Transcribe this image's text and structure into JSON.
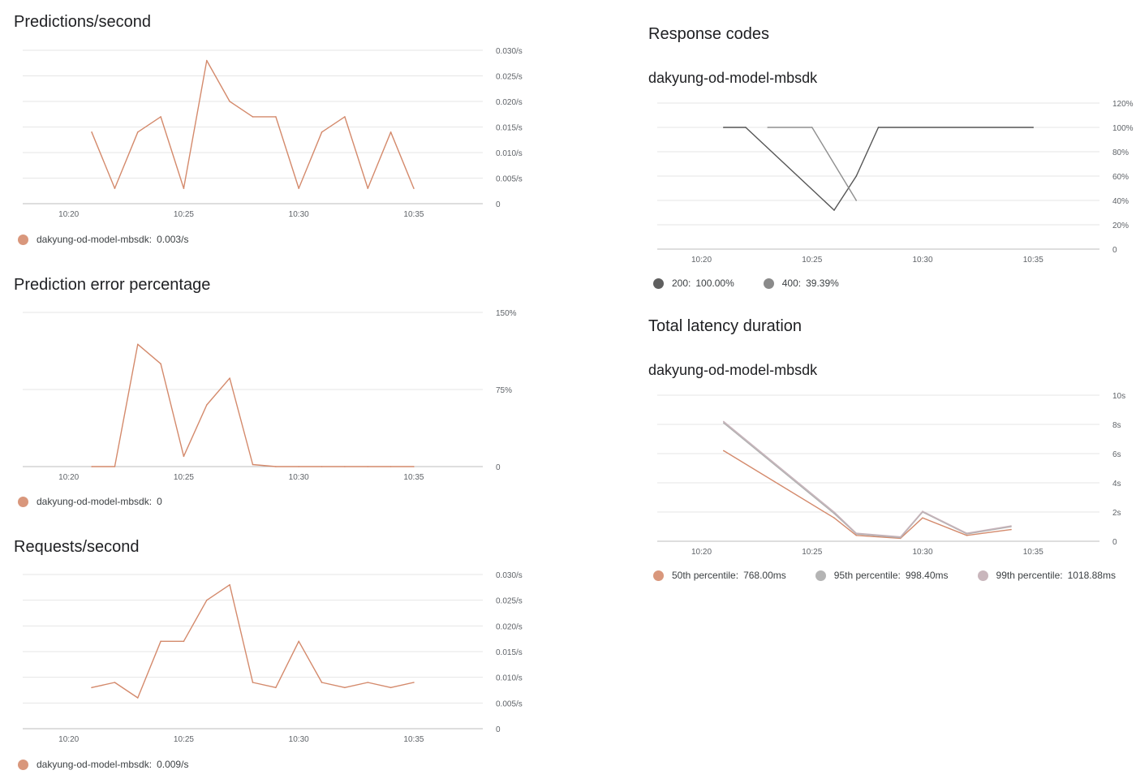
{
  "panels": [
    {
      "id": "predictions",
      "title": "Predictions/second",
      "subtitle": "",
      "legend": [
        {
          "name": "dakyung-od-model-mbsdk:",
          "value": "0.003/s",
          "color": "#d9977c"
        }
      ]
    },
    {
      "id": "errors",
      "title": "Prediction error percentage",
      "subtitle": "",
      "legend": [
        {
          "name": "dakyung-od-model-mbsdk:",
          "value": "0",
          "color": "#d9977c"
        }
      ]
    },
    {
      "id": "requests",
      "title": "Requests/second",
      "subtitle": "",
      "legend": [
        {
          "name": "dakyung-od-model-mbsdk:",
          "value": "0.009/s",
          "color": "#d9977c"
        }
      ]
    },
    {
      "id": "response",
      "title": "Response codes",
      "subtitle": "dakyung-od-model-mbsdk",
      "legend": [
        {
          "name": "200:",
          "value": "100.00%",
          "color": "#5f5f5f"
        },
        {
          "name": "400:",
          "value": "39.39%",
          "color": "#8a8a8a"
        }
      ]
    },
    {
      "id": "latency",
      "title": "Total latency duration",
      "subtitle": "dakyung-od-model-mbsdk",
      "legend": [
        {
          "name": "50th percentile:",
          "value": "768.00ms",
          "color": "#d9977c"
        },
        {
          "name": "95th percentile:",
          "value": "998.40ms",
          "color": "#b4b4b4"
        },
        {
          "name": "99th percentile:",
          "value": "1018.88ms",
          "color": "#c9b6bc"
        }
      ]
    }
  ],
  "chart_data": [
    {
      "type": "line",
      "title": "Predictions/second",
      "x_ticks": [
        "10:20",
        "10:25",
        "10:30",
        "10:35"
      ],
      "y_ticks": [
        "0",
        "0.005/s",
        "0.010/s",
        "0.015/s",
        "0.020/s",
        "0.025/s",
        "0.030/s"
      ],
      "ylim": [
        0,
        0.03
      ],
      "xlim_minutes": [
        "10:18",
        "10:38"
      ],
      "grid": true,
      "legend_position": "bottom-left",
      "series": [
        {
          "name": "dakyung-od-model-mbsdk",
          "color": "#d48a6c",
          "x": [
            "10:21",
            "10:22",
            "10:23",
            "10:24",
            "10:25",
            "10:26",
            "10:27",
            "10:28",
            "10:29",
            "10:30",
            "10:31",
            "10:32",
            "10:33",
            "10:34",
            "10:35"
          ],
          "values": [
            0.014,
            0.003,
            0.014,
            0.017,
            0.003,
            0.028,
            0.02,
            0.017,
            0.017,
            0.003,
            0.014,
            0.017,
            0.003,
            0.014,
            0.003
          ]
        }
      ]
    },
    {
      "type": "line",
      "title": "Prediction error percentage",
      "x_ticks": [
        "10:20",
        "10:25",
        "10:30",
        "10:35"
      ],
      "y_ticks": [
        "0",
        "75%",
        "150%"
      ],
      "ylim": [
        0,
        150
      ],
      "xlim_minutes": [
        "10:18",
        "10:38"
      ],
      "grid": true,
      "legend_position": "bottom-left",
      "series": [
        {
          "name": "dakyung-od-model-mbsdk",
          "color": "#d48a6c",
          "x": [
            "10:21",
            "10:22",
            "10:23",
            "10:24",
            "10:25",
            "10:26",
            "10:27",
            "10:28",
            "10:29",
            "10:30",
            "10:31",
            "10:32",
            "10:33",
            "10:34",
            "10:35"
          ],
          "values": [
            0,
            0,
            119,
            100,
            10,
            60,
            86,
            2,
            0,
            0,
            0,
            0,
            0,
            0,
            0
          ]
        }
      ]
    },
    {
      "type": "line",
      "title": "Requests/second",
      "x_ticks": [
        "10:20",
        "10:25",
        "10:30",
        "10:35"
      ],
      "y_ticks": [
        "0",
        "0.005/s",
        "0.010/s",
        "0.015/s",
        "0.020/s",
        "0.025/s",
        "0.030/s"
      ],
      "ylim": [
        0,
        0.03
      ],
      "xlim_minutes": [
        "10:18",
        "10:38"
      ],
      "grid": true,
      "legend_position": "bottom-left",
      "series": [
        {
          "name": "dakyung-od-model-mbsdk",
          "color": "#d48a6c",
          "x": [
            "10:21",
            "10:22",
            "10:23",
            "10:24",
            "10:25",
            "10:26",
            "10:27",
            "10:28",
            "10:29",
            "10:30",
            "10:31",
            "10:32",
            "10:33",
            "10:34",
            "10:35"
          ],
          "values": [
            0.008,
            0.009,
            0.006,
            0.017,
            0.017,
            0.025,
            0.028,
            0.009,
            0.008,
            0.017,
            0.009,
            0.008,
            0.009,
            0.008,
            0.009
          ]
        }
      ]
    },
    {
      "type": "line",
      "title": "Response codes",
      "subtitle": "dakyung-od-model-mbsdk",
      "x_ticks": [
        "10:20",
        "10:25",
        "10:30",
        "10:35"
      ],
      "y_ticks": [
        "0",
        "20%",
        "40%",
        "60%",
        "80%",
        "100%",
        "120%"
      ],
      "ylim": [
        0,
        120
      ],
      "xlim_minutes": [
        "10:18",
        "10:38"
      ],
      "grid": true,
      "legend_position": "bottom-left",
      "series": [
        {
          "name": "200",
          "color": "#555555",
          "x": [
            "10:21",
            "10:22",
            "10:26",
            "10:27",
            "10:28",
            "10:35"
          ],
          "values": [
            100,
            100,
            32,
            60,
            100,
            100
          ]
        },
        {
          "name": "400",
          "color": "#8f8f8f",
          "x": [
            "10:23",
            "10:25",
            "10:27"
          ],
          "values": [
            100,
            100,
            40
          ]
        }
      ]
    },
    {
      "type": "line",
      "title": "Total latency duration",
      "subtitle": "dakyung-od-model-mbsdk",
      "x_ticks": [
        "10:20",
        "10:25",
        "10:30",
        "10:35"
      ],
      "y_ticks": [
        "0",
        "2s",
        "4s",
        "6s",
        "8s",
        "10s"
      ],
      "ylim": [
        0,
        10
      ],
      "xlim_minutes": [
        "10:18",
        "10:38"
      ],
      "grid": true,
      "legend_position": "bottom-left",
      "series": [
        {
          "name": "50th percentile",
          "color": "#d48a6c",
          "x": [
            "10:21",
            "10:26",
            "10:27",
            "10:29",
            "10:30",
            "10:32",
            "10:34"
          ],
          "values": [
            6.2,
            1.6,
            0.4,
            0.2,
            1.6,
            0.4,
            0.8
          ]
        },
        {
          "name": "95th percentile",
          "color": "#b0b0b0",
          "x": [
            "10:21",
            "10:26",
            "10:27",
            "10:29",
            "10:30",
            "10:32",
            "10:34"
          ],
          "values": [
            8.1,
            1.9,
            0.5,
            0.25,
            2.0,
            0.5,
            1.0
          ]
        },
        {
          "name": "99th percentile",
          "color": "#c7b3ba",
          "x": [
            "10:21",
            "10:26",
            "10:27",
            "10:29",
            "10:30",
            "10:32",
            "10:34"
          ],
          "values": [
            8.2,
            2.0,
            0.55,
            0.3,
            2.05,
            0.55,
            1.05
          ]
        }
      ]
    }
  ]
}
